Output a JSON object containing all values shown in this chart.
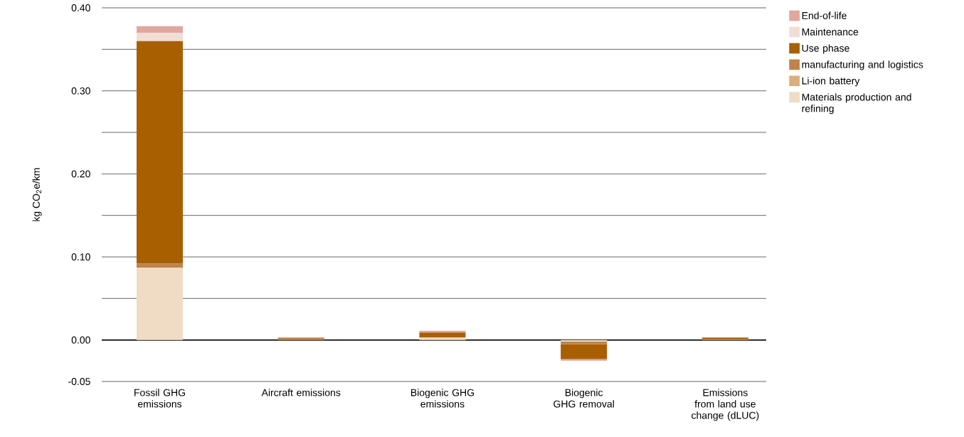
{
  "chart_data": {
    "type": "bar",
    "stacked": true,
    "ylabel": "kg CO$_{2}$e/km",
    "categories": [
      "Fossil GHG emissions",
      "Aircraft emissions",
      "Biogenic GHG emissions",
      "Biogenic GHG removal",
      "Emissions from land use change (dLUC)"
    ],
    "series": [
      {
        "name": "Materials production and refining",
        "color": "#f0dcc4",
        "values": [
          0.087,
          0,
          0.003,
          -0.002,
          0
        ]
      },
      {
        "name": "Li-ion battery",
        "color": "#d9b07e",
        "values": [
          0,
          0,
          0,
          0,
          0
        ]
      },
      {
        "name": "manufacturing and logistics",
        "color": "#c0834a",
        "values": [
          0.005,
          0.003,
          0,
          -0.003,
          0.001
        ]
      },
      {
        "name": "Use phase",
        "color": "#a85f00",
        "values": [
          0.268,
          0,
          0.006,
          -0.018,
          0.002
        ]
      },
      {
        "name": "Maintenance",
        "color": "#f2ddd6",
        "values": [
          0.01,
          0,
          null,
          0,
          0
        ]
      },
      {
        "name": "End-of-life",
        "color": "#e0a6a0",
        "values": [
          0.008,
          0,
          0.002,
          -0.002,
          0
        ]
      }
    ],
    "ylim": [
      -0.05,
      0.4
    ],
    "yticks": [
      {
        "value": -0.05,
        "label": "-0.05"
      },
      {
        "value": 0,
        "label": "0.00"
      },
      {
        "value": 0.05,
        "label": null
      },
      {
        "value": 0.1,
        "label": "0.10"
      },
      {
        "value": 0.15,
        "label": null
      },
      {
        "value": 0.2,
        "label": "0.20"
      },
      {
        "value": 0.25,
        "label": null
      },
      {
        "value": 0.3,
        "label": "0.30"
      },
      {
        "value": 0.35,
        "label": null
      },
      {
        "value": 0.4,
        "label": "0.40"
      }
    ],
    "grid": "y",
    "legend": "right"
  }
}
